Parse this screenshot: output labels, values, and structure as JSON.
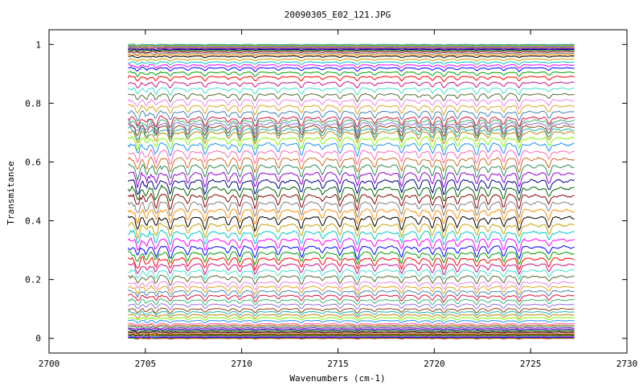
{
  "chart_data": {
    "type": "line",
    "title": "20090305_E02_121.JPG",
    "xlabel": "Wavenumbers (cm-1)",
    "ylabel": "Transmitance",
    "xlim": [
      2700,
      2730
    ],
    "ylim": [
      -0.05,
      1.05
    ],
    "x_ticks": [
      2700,
      2705,
      2710,
      2715,
      2720,
      2725,
      2730
    ],
    "y_ticks": [
      0,
      0.2,
      0.4,
      0.6,
      0.8,
      1
    ],
    "x_tick_labels": [
      "2700",
      "2705",
      "2710",
      "2715",
      "2720",
      "2725",
      "2730"
    ],
    "y_tick_labels": [
      "0",
      "0.2",
      "0.4",
      "0.6",
      "0.8",
      "1"
    ],
    "grid": false,
    "legend": "none",
    "x_range": [
      2704.1,
      2727.3
    ],
    "num_series": 80,
    "series_baselines": [
      0.0,
      0.002,
      0.004,
      0.006,
      0.008,
      0.01,
      0.012,
      0.015,
      0.018,
      0.021,
      0.025,
      0.03,
      0.035,
      0.04,
      0.045,
      0.05,
      0.06,
      0.07,
      0.08,
      0.09,
      0.1,
      0.115,
      0.13,
      0.145,
      0.16,
      0.175,
      0.19,
      0.21,
      0.23,
      0.25,
      0.27,
      0.29,
      0.31,
      0.335,
      0.36,
      0.385,
      0.41,
      0.435,
      0.46,
      0.485,
      0.51,
      0.535,
      0.56,
      0.585,
      0.61,
      0.635,
      0.66,
      0.68,
      0.7,
      0.71,
      0.72,
      0.73,
      0.74,
      0.75,
      0.77,
      0.79,
      0.81,
      0.83,
      0.85,
      0.87,
      0.89,
      0.905,
      0.92,
      0.93,
      0.94,
      0.95,
      0.96,
      0.965,
      0.97,
      0.975,
      0.98,
      0.983,
      0.986,
      0.989,
      0.991,
      0.993,
      0.995,
      0.997,
      0.998,
      1.0
    ],
    "absorption_lines": [
      2704.6,
      2705.05,
      2705.55,
      2706.3,
      2707.2,
      2708.1,
      2709.3,
      2709.9,
      2710.7,
      2711.9,
      2713.1,
      2714.2,
      2715.1,
      2716.0,
      2716.9,
      2718.3,
      2719.2,
      2719.9,
      2720.5,
      2721.2,
      2722.2,
      2722.8,
      2723.6,
      2724.4,
      2725.95
    ],
    "series_colors": [
      "#ff0000",
      "#00a000",
      "#0000ff",
      "#ff00ff",
      "#00c8c8",
      "#c8a000",
      "#000000",
      "#ff8c00",
      "#808080",
      "#8b0000",
      "#006400",
      "#00008b",
      "#9400d3",
      "#2e8b57",
      "#d2691e",
      "#ff69b4",
      "#1e90ff",
      "#7cfc00",
      "#b8860b",
      "#20b2aa",
      "#8b4513",
      "#9370db",
      "#3cb371",
      "#dc143c",
      "#4682b4",
      "#daa520",
      "#ee82ee",
      "#556b2f",
      "#40e0d0",
      "#c71585"
    ]
  }
}
